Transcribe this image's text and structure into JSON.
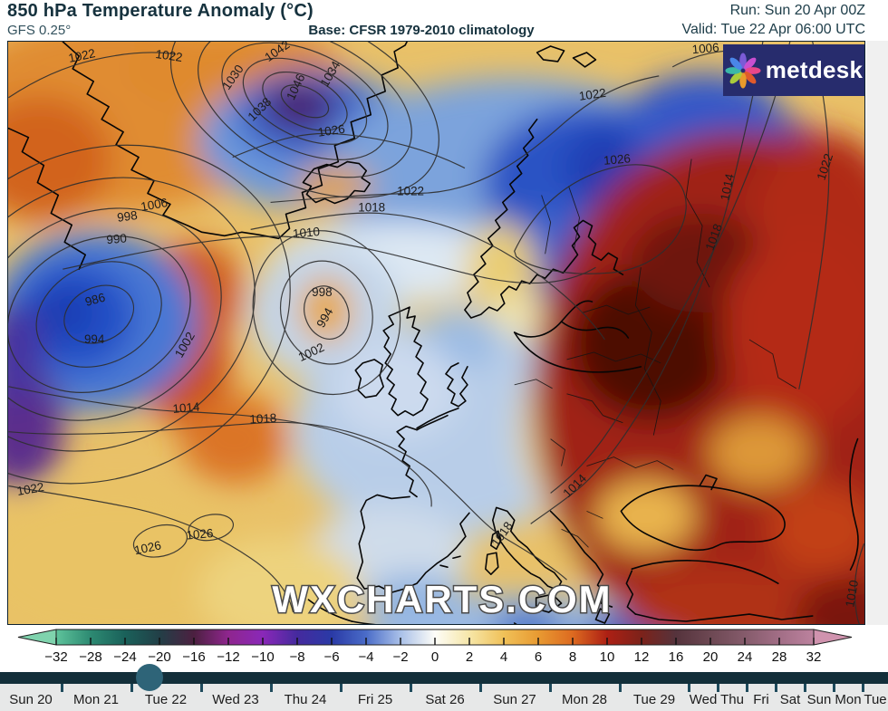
{
  "header": {
    "title": "850 hPa Temperature Anomaly (°C)",
    "model": "GFS 0.25°",
    "base": "Base: CFSR 1979-2010 climatology",
    "run": "Run: Sun 20 Apr 00Z",
    "valid": "Valid: Tue 22 Apr 06:00 UTC"
  },
  "map": {
    "watermark": "WXCHARTS.COM",
    "logo": {
      "text": "metdesk",
      "icon": "metdesk-flower-icon",
      "petal_colors": [
        "#7b5bd6",
        "#c94fd0",
        "#e8478a",
        "#e05a2b",
        "#e89a2b",
        "#aacb3c",
        "#3bb8a8",
        "#4a86e8"
      ]
    },
    "contour_labels": [
      "1022",
      "1022",
      "1030",
      "1042",
      "1046",
      "1038",
      "1034",
      "1026",
      "1022",
      "1018",
      "1010",
      "1006",
      "998",
      "990",
      "986",
      "994",
      "1002",
      "998",
      "994",
      "1002",
      "1014",
      "1018",
      "1022",
      "1026",
      "1026",
      "1022",
      "1026",
      "1006",
      "1014",
      "1018",
      "1014",
      "1018",
      "1022",
      "1010"
    ]
  },
  "colorbar": {
    "unit": "°C",
    "tick_labels": [
      "−32",
      "−28",
      "−24",
      "−20",
      "−16",
      "−12",
      "−10",
      "−8",
      "−6",
      "−4",
      "−2",
      "0",
      "2",
      "4",
      "6",
      "8",
      "10",
      "12",
      "16",
      "20",
      "24",
      "28",
      "32"
    ],
    "stop_colors": [
      "#5ec39b",
      "#2d8a72",
      "#1a615a",
      "#223f47",
      "#4c2040",
      "#8f268e",
      "#8a28b8",
      "#452a9e",
      "#2a3aa6",
      "#4a6cc8",
      "#a9c0e8",
      "#fdfdf8",
      "#f6e6a8",
      "#f0c158",
      "#e89a32",
      "#dd6a20",
      "#ad2014",
      "#7c221a",
      "#55333c",
      "#6d4853",
      "#855b6b",
      "#a26e86",
      "#bc829e"
    ],
    "arrow_left_color": "#7fd3ad",
    "arrow_right_color": "#d093ae"
  },
  "timeline": {
    "days": [
      "Sun 20",
      "Mon 21",
      "Tue 22",
      "Wed 23",
      "Thu 24",
      "Fri 25",
      "Sat 26",
      "Sun 27",
      "Mon 28",
      "Tue 29",
      "Wed",
      "Thu",
      "Fri",
      "Sat",
      "Sun",
      "Mon",
      "Tue"
    ],
    "selected_day": "Tue 22"
  },
  "colors": {
    "header-text": "#16323e",
    "timeline-bar": "#132f3a",
    "timeline-tick": "#1e4a5c",
    "timeline-handle": "#2e6478",
    "logo-bg": "#272c6d"
  }
}
